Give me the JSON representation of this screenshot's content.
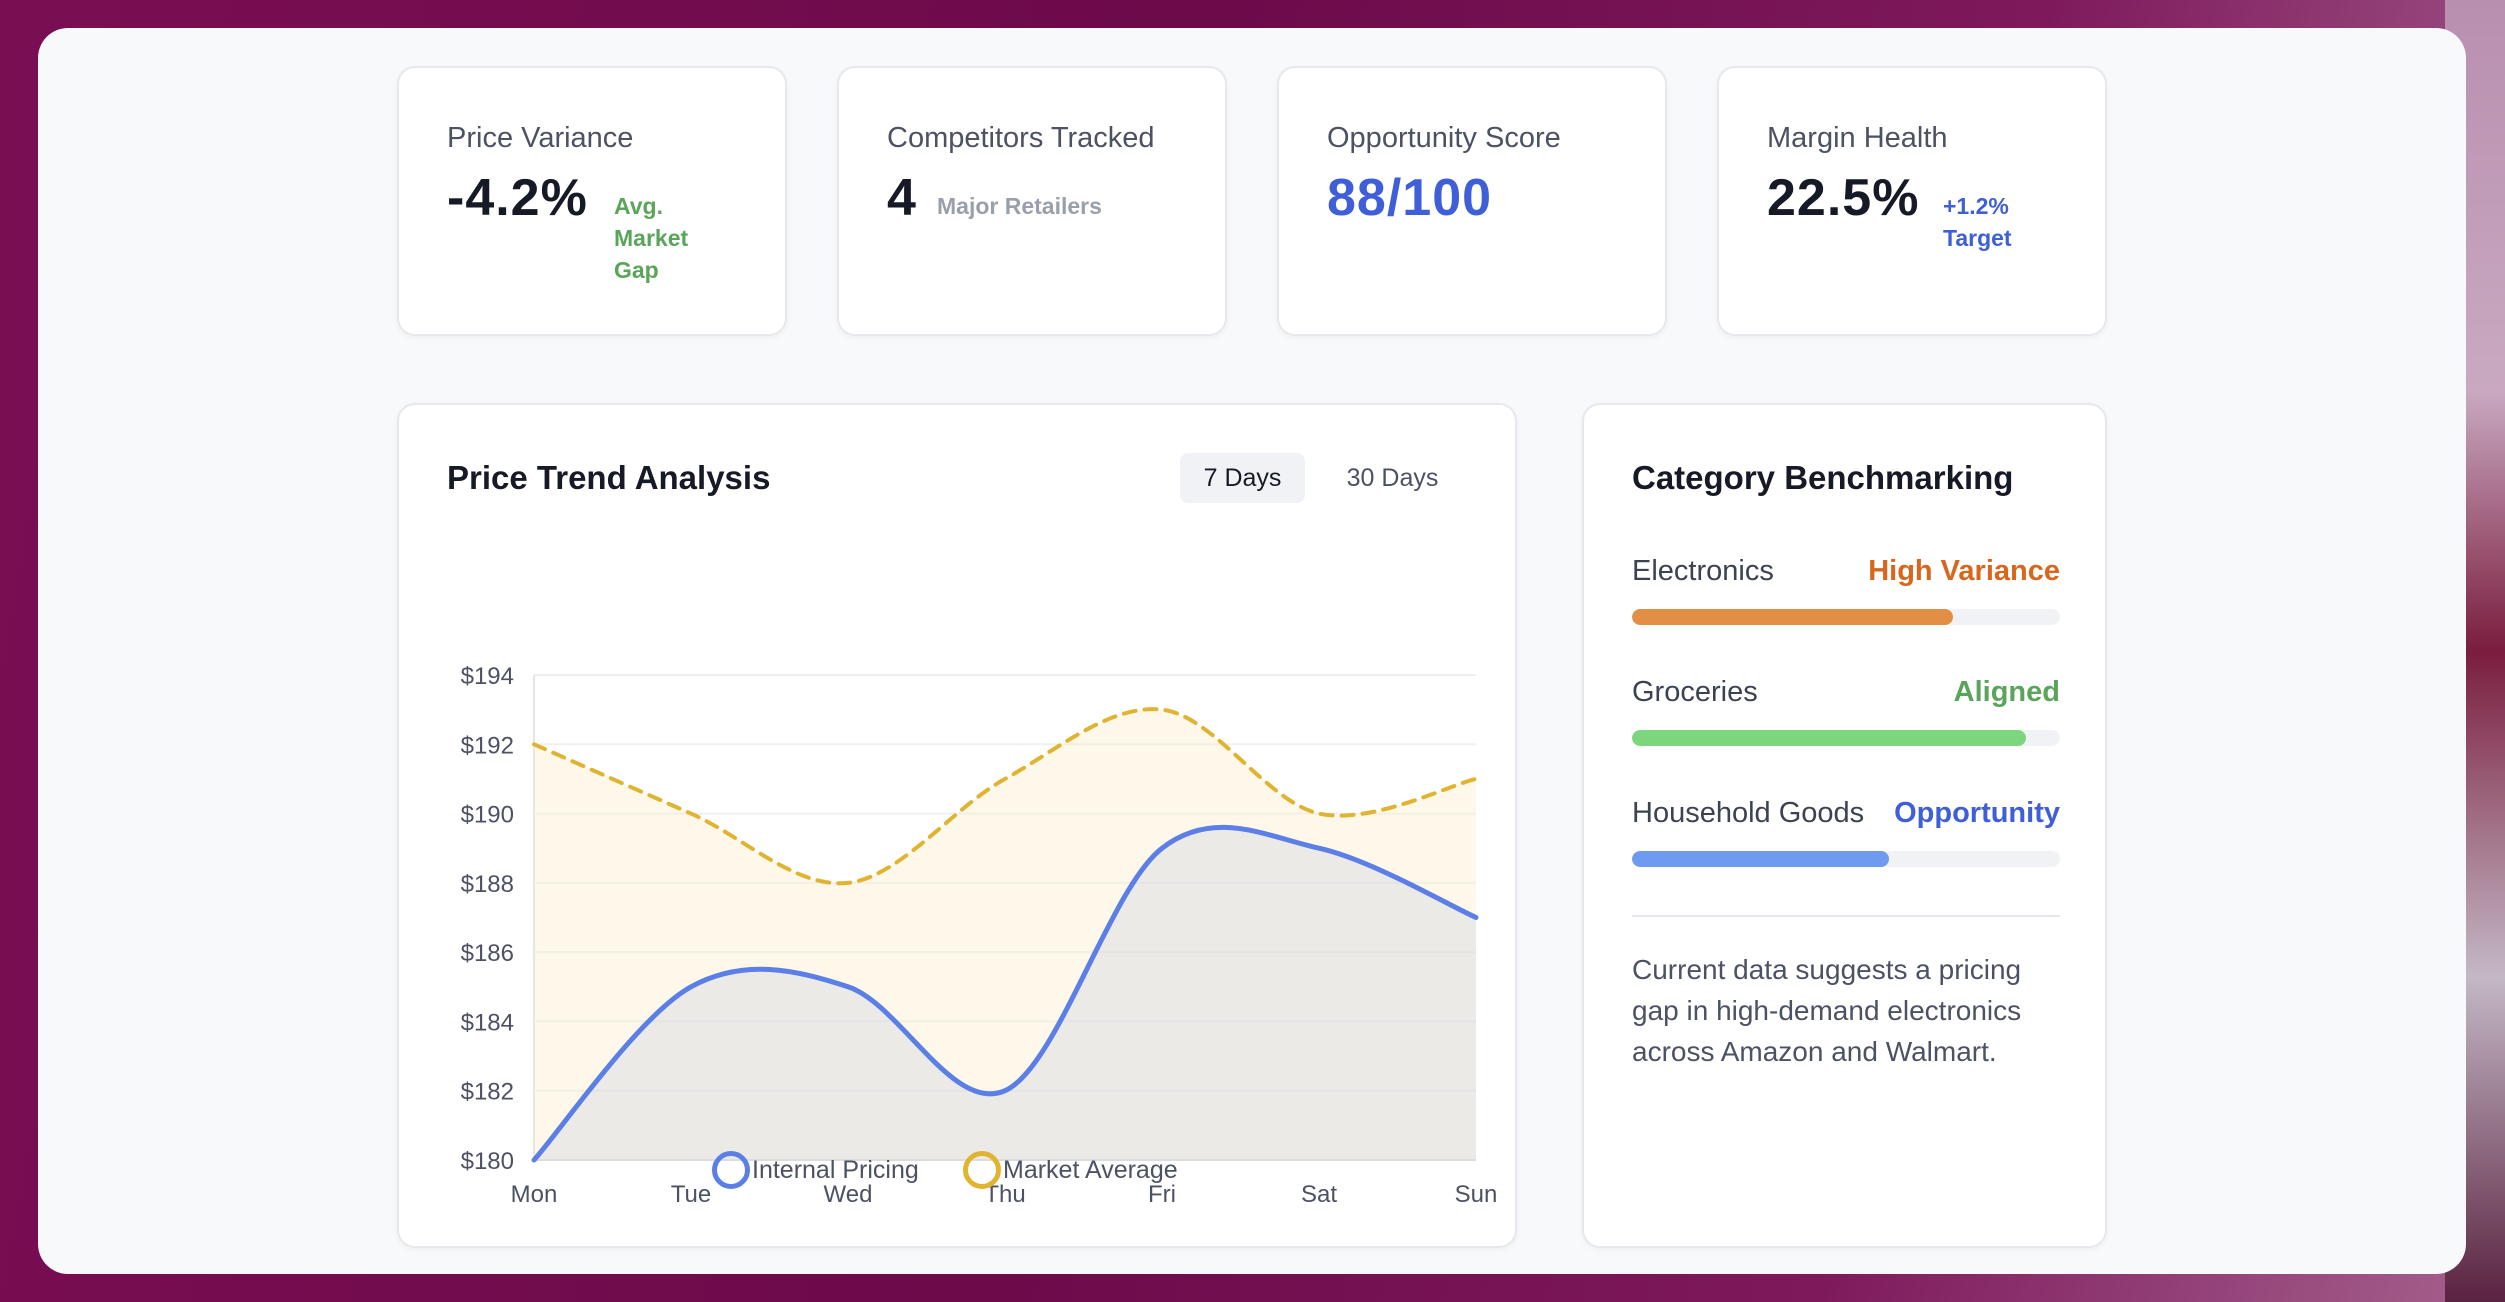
{
  "stats": [
    {
      "label": "Price Variance",
      "value": "-4.2%",
      "sub": "Avg. Market Gap",
      "sub_color": "#5aa55a"
    },
    {
      "label": "Competitors Tracked",
      "value": "4",
      "sub": "Major Retailers",
      "sub_color": "#9aa0ab"
    },
    {
      "label": "Opportunity Score",
      "value": "88/100",
      "sub": "",
      "value_color": "#3f5fd8"
    },
    {
      "label": "Margin Health",
      "value": "22.5%",
      "sub": "+1.2% Target",
      "sub_color": "#3f5fd8"
    }
  ],
  "trend": {
    "title": "Price Trend Analysis",
    "tabs": [
      "7 Days",
      "30 Days"
    ],
    "active_tab": "7 Days"
  },
  "chart_data": {
    "type": "line",
    "categories": [
      "Mon",
      "Tue",
      "Wed",
      "Thu",
      "Fri",
      "Sat",
      "Sun"
    ],
    "series": [
      {
        "name": "Internal Pricing",
        "values": [
          180,
          185,
          185,
          182,
          189,
          189,
          187
        ],
        "color": "#5b7fe6"
      },
      {
        "name": "Market Average",
        "values": [
          192,
          190,
          188,
          191,
          193,
          190,
          191
        ],
        "color": "#e0b431"
      }
    ],
    "ylim": [
      180,
      194
    ],
    "yticks": [
      "$194",
      "$192",
      "$190",
      "$188",
      "$186",
      "$184",
      "$182",
      "$180"
    ],
    "grid": true,
    "legend": "bottom"
  },
  "benchmark": {
    "title": "Category Benchmarking",
    "items": [
      {
        "name": "Electronics",
        "status": "High Variance",
        "status_color": "#d9661c",
        "fill": 0.75,
        "fill_color": "#e28f45"
      },
      {
        "name": "Groceries",
        "status": "Aligned",
        "status_color": "#5aa55a",
        "fill": 0.92,
        "fill_color": "#7cd67e"
      },
      {
        "name": "Household Goods",
        "status": "Opportunity",
        "status_color": "#3f5fd8",
        "fill": 0.6,
        "fill_color": "#6e9af0"
      }
    ],
    "note": "Current data suggests a pricing gap in high-demand electronics across Amazon and Walmart."
  }
}
